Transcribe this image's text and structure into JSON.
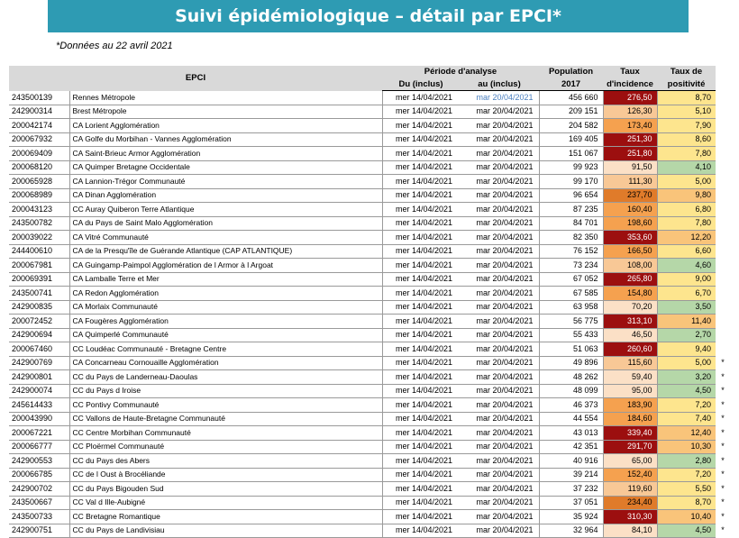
{
  "title": "Suivi épidémiologique – détail par EPCI*",
  "note": "*Données au 22 avril 2021",
  "headers": {
    "epci": "EPCI",
    "periode": "Période d'analyse",
    "du": "Du (inclus)",
    "au": "au (inclus)",
    "population_l1": "Population",
    "population_l2": "2017",
    "incidence_l1": "Taux",
    "incidence_l2": "d'incidence",
    "positivite_l1": "Taux de",
    "positivite_l2": "positivité"
  },
  "colors": {
    "banner": "#2e9bb3",
    "header_bg": "#d9d9d9",
    "incidence_dark_red": "#9c0f0f",
    "incidence_orange": "#f5a14f",
    "incidence_light_orange": "#f8c896",
    "incidence_peach": "#fbe0c6",
    "positivite_green": "#b5d7a8",
    "positivite_yellow": "#fde58e",
    "positivite_orange": "#f9c47a"
  },
  "rows": [
    {
      "code": "243500139",
      "name": "Rennes Métropole",
      "du": "mer 14/04/2021",
      "au": "mar 20/04/2021",
      "population": "456 660",
      "incidence": "276,50",
      "inc_color": "#9c0f0f",
      "positivite": "8,70",
      "pos_color": "#fde58e",
      "star": ""
    },
    {
      "code": "242900314",
      "name": "Brest Métropole",
      "du": "mer 14/04/2021",
      "au": "mar 20/04/2021",
      "population": "209 151",
      "incidence": "126,30",
      "inc_color": "#f8c896",
      "positivite": "5,10",
      "pos_color": "#fde58e",
      "star": ""
    },
    {
      "code": "200042174",
      "name": "CA Lorient Agglomération",
      "du": "mer 14/04/2021",
      "au": "mar 20/04/2021",
      "population": "204 582",
      "incidence": "173,40",
      "inc_color": "#f5a14f",
      "positivite": "7,90",
      "pos_color": "#fde58e",
      "star": ""
    },
    {
      "code": "200067932",
      "name": "CA Golfe du Morbihan - Vannes Agglomération",
      "du": "mer 14/04/2021",
      "au": "mar 20/04/2021",
      "population": "169 405",
      "incidence": "251,30",
      "inc_color": "#9c0f0f",
      "positivite": "8,60",
      "pos_color": "#fde58e",
      "star": ""
    },
    {
      "code": "200069409",
      "name": "CA Saint-Brieuc Armor Agglomération",
      "du": "mer 14/04/2021",
      "au": "mar 20/04/2021",
      "population": "151 067",
      "incidence": "251,80",
      "inc_color": "#9c0f0f",
      "positivite": "7,80",
      "pos_color": "#fde58e",
      "star": ""
    },
    {
      "code": "200068120",
      "name": "CA Quimper Bretagne Occidentale",
      "du": "mer 14/04/2021",
      "au": "mar 20/04/2021",
      "population": "99 923",
      "incidence": "91,50",
      "inc_color": "#fbe0c6",
      "positivite": "4,10",
      "pos_color": "#b5d7a8",
      "star": ""
    },
    {
      "code": "200065928",
      "name": "CA Lannion-Trégor Communauté",
      "du": "mer 14/04/2021",
      "au": "mar 20/04/2021",
      "population": "99 170",
      "incidence": "111,30",
      "inc_color": "#f8c896",
      "positivite": "5,00",
      "pos_color": "#fde58e",
      "star": ""
    },
    {
      "code": "200068989",
      "name": "CA Dinan Agglomération",
      "du": "mer 14/04/2021",
      "au": "mar 20/04/2021",
      "population": "96 654",
      "incidence": "237,70",
      "inc_color": "#e07b2a",
      "positivite": "9,80",
      "pos_color": "#f9c47a",
      "star": ""
    },
    {
      "code": "200043123",
      "name": "CC Auray Quiberon Terre Atlantique",
      "du": "mer 14/04/2021",
      "au": "mar 20/04/2021",
      "population": "87 235",
      "incidence": "160,40",
      "inc_color": "#f5a14f",
      "positivite": "6,80",
      "pos_color": "#fde58e",
      "star": ""
    },
    {
      "code": "243500782",
      "name": "CA du Pays de Saint Malo Agglomération",
      "du": "mer 14/04/2021",
      "au": "mar 20/04/2021",
      "population": "84 701",
      "incidence": "198,60",
      "inc_color": "#f5a14f",
      "positivite": "7,80",
      "pos_color": "#fde58e",
      "star": ""
    },
    {
      "code": "200039022",
      "name": "CA Vitré Communauté",
      "du": "mer 14/04/2021",
      "au": "mar 20/04/2021",
      "population": "82 350",
      "incidence": "353,60",
      "inc_color": "#9c0f0f",
      "positivite": "12,20",
      "pos_color": "#f9c47a",
      "star": ""
    },
    {
      "code": "244400610",
      "name": "CA de la Presqu'île de Guérande Atlantique (CAP ATLANTIQUE)",
      "du": "mer 14/04/2021",
      "au": "mar 20/04/2021",
      "population": "76 152",
      "incidence": "166,50",
      "inc_color": "#f5a14f",
      "positivite": "6,60",
      "pos_color": "#fde58e",
      "star": ""
    },
    {
      "code": "200067981",
      "name": "CA Guingamp-Paimpol Agglomération de l Armor à l Argoat",
      "du": "mer 14/04/2021",
      "au": "mar 20/04/2021",
      "population": "73 234",
      "incidence": "108,00",
      "inc_color": "#f8c896",
      "positivite": "4,60",
      "pos_color": "#b5d7a8",
      "star": ""
    },
    {
      "code": "200069391",
      "name": "CA Lamballe Terre et Mer",
      "du": "mer 14/04/2021",
      "au": "mar 20/04/2021",
      "population": "67 052",
      "incidence": "265,80",
      "inc_color": "#9c0f0f",
      "positivite": "9,00",
      "pos_color": "#fde58e",
      "star": ""
    },
    {
      "code": "243500741",
      "name": "CA Redon Agglomération",
      "du": "mer 14/04/2021",
      "au": "mar 20/04/2021",
      "population": "67 585",
      "incidence": "154,80",
      "inc_color": "#f5a14f",
      "positivite": "6,70",
      "pos_color": "#fde58e",
      "star": ""
    },
    {
      "code": "242900835",
      "name": "CA Morlaix Communauté",
      "du": "mer 14/04/2021",
      "au": "mar 20/04/2021",
      "population": "63 958",
      "incidence": "70,20",
      "inc_color": "#fbe0c6",
      "positivite": "3,50",
      "pos_color": "#b5d7a8",
      "star": ""
    },
    {
      "code": "200072452",
      "name": "CA Fougères Agglomération",
      "du": "mer 14/04/2021",
      "au": "mar 20/04/2021",
      "population": "56 775",
      "incidence": "313,10",
      "inc_color": "#9c0f0f",
      "positivite": "11,40",
      "pos_color": "#f9c47a",
      "star": ""
    },
    {
      "code": "242900694",
      "name": "CA Quimperlé Communauté",
      "du": "mer 14/04/2021",
      "au": "mar 20/04/2021",
      "population": "55 433",
      "incidence": "46,50",
      "inc_color": "#fbe0c6",
      "positivite": "2,70",
      "pos_color": "#b5d7a8",
      "star": ""
    },
    {
      "code": "200067460",
      "name": "CC Loudéac Communauté - Bretagne Centre",
      "du": "mer 14/04/2021",
      "au": "mar 20/04/2021",
      "population": "51 063",
      "incidence": "260,60",
      "inc_color": "#9c0f0f",
      "positivite": "9,40",
      "pos_color": "#fde58e",
      "star": ""
    },
    {
      "code": "242900769",
      "name": "CA Concarneau Cornouaille Agglomération",
      "du": "mer 14/04/2021",
      "au": "mar 20/04/2021",
      "population": "49 896",
      "incidence": "115,60",
      "inc_color": "#f8c896",
      "positivite": "5,00",
      "pos_color": "#fde58e",
      "star": "*"
    },
    {
      "code": "242900801",
      "name": "CC du Pays de Landerneau-Daoulas",
      "du": "mer 14/04/2021",
      "au": "mar 20/04/2021",
      "population": "48 262",
      "incidence": "59,40",
      "inc_color": "#fbe0c6",
      "positivite": "3,20",
      "pos_color": "#b5d7a8",
      "star": "*"
    },
    {
      "code": "242900074",
      "name": "CC du Pays d Iroise",
      "du": "mer 14/04/2021",
      "au": "mar 20/04/2021",
      "population": "48 099",
      "incidence": "95,00",
      "inc_color": "#fbe0c6",
      "positivite": "4,50",
      "pos_color": "#b5d7a8",
      "star": "*"
    },
    {
      "code": "245614433",
      "name": "CC Pontivy Communauté",
      "du": "mer 14/04/2021",
      "au": "mar 20/04/2021",
      "population": "46 373",
      "incidence": "183,90",
      "inc_color": "#f5a14f",
      "positivite": "7,20",
      "pos_color": "#fde58e",
      "star": "*"
    },
    {
      "code": "200043990",
      "name": "CC Vallons de Haute-Bretagne Communauté",
      "du": "mer 14/04/2021",
      "au": "mar 20/04/2021",
      "population": "44 554",
      "incidence": "184,60",
      "inc_color": "#f5a14f",
      "positivite": "7,40",
      "pos_color": "#fde58e",
      "star": "*"
    },
    {
      "code": "200067221",
      "name": "CC Centre Morbihan Communauté",
      "du": "mer 14/04/2021",
      "au": "mar 20/04/2021",
      "population": "43 013",
      "incidence": "339,40",
      "inc_color": "#9c0f0f",
      "positivite": "12,40",
      "pos_color": "#f9c47a",
      "star": "*"
    },
    {
      "code": "200066777",
      "name": "CC Ploërmel Communauté",
      "du": "mer 14/04/2021",
      "au": "mar 20/04/2021",
      "population": "42 351",
      "incidence": "291,70",
      "inc_color": "#9c0f0f",
      "positivite": "10,30",
      "pos_color": "#f9c47a",
      "star": "*"
    },
    {
      "code": "242900553",
      "name": "CC du Pays des Abers",
      "du": "mer 14/04/2021",
      "au": "mar 20/04/2021",
      "population": "40 916",
      "incidence": "65,00",
      "inc_color": "#fbe0c6",
      "positivite": "2,80",
      "pos_color": "#b5d7a8",
      "star": "*"
    },
    {
      "code": "200066785",
      "name": "CC de l Oust à Brocéliande",
      "du": "mer 14/04/2021",
      "au": "mar 20/04/2021",
      "population": "39 214",
      "incidence": "152,40",
      "inc_color": "#f5a14f",
      "positivite": "7,20",
      "pos_color": "#fde58e",
      "star": "*"
    },
    {
      "code": "242900702",
      "name": "CC du Pays Bigouden Sud",
      "du": "mer 14/04/2021",
      "au": "mar 20/04/2021",
      "population": "37 232",
      "incidence": "119,60",
      "inc_color": "#f8c896",
      "positivite": "5,50",
      "pos_color": "#fde58e",
      "star": "*"
    },
    {
      "code": "243500667",
      "name": "CC Val d Ille-Aubigné",
      "du": "mer 14/04/2021",
      "au": "mar 20/04/2021",
      "population": "37 051",
      "incidence": "234,40",
      "inc_color": "#e07b2a",
      "positivite": "8,70",
      "pos_color": "#fde58e",
      "star": "*"
    },
    {
      "code": "243500733",
      "name": "CC Bretagne Romantique",
      "du": "mer 14/04/2021",
      "au": "mar 20/04/2021",
      "population": "35 924",
      "incidence": "310,30",
      "inc_color": "#9c0f0f",
      "positivite": "10,40",
      "pos_color": "#f9c47a",
      "star": "*"
    },
    {
      "code": "242900751",
      "name": "CC du Pays de Landivisiau",
      "du": "mer 14/04/2021",
      "au": "mar 20/04/2021",
      "population": "32 964",
      "incidence": "84,10",
      "inc_color": "#fbe0c6",
      "positivite": "4,50",
      "pos_color": "#b5d7a8",
      "star": "*"
    }
  ]
}
